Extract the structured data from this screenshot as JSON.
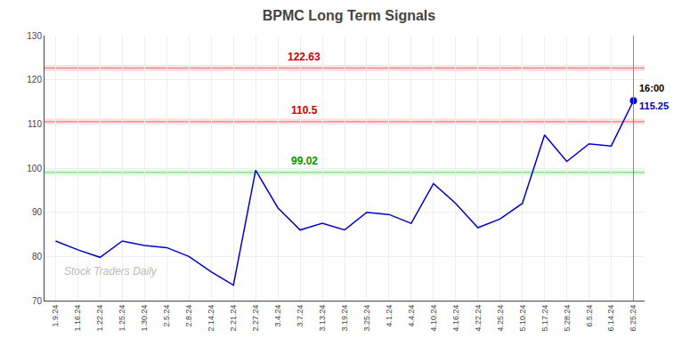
{
  "chart_data": {
    "type": "line",
    "title": "BPMC Long Term Signals",
    "categories": [
      "1.9.24",
      "1.16.24",
      "1.22.24",
      "1.25.24",
      "1.30.24",
      "2.5.24",
      "2.8.24",
      "2.14.24",
      "2.21.24",
      "2.27.24",
      "3.4.24",
      "3.7.24",
      "3.13.24",
      "3.19.24",
      "3.25.24",
      "4.1.24",
      "4.4.24",
      "4.10.24",
      "4.16.24",
      "4.22.24",
      "4.25.24",
      "5.10.24",
      "5.17.24",
      "5.28.24",
      "6.5.24",
      "6.14.24",
      "6.25.24"
    ],
    "values": [
      83.5,
      81.5,
      79.8,
      83.5,
      82.5,
      82.0,
      80.0,
      76.5,
      73.5,
      99.5,
      91.0,
      86.0,
      87.5,
      86.0,
      90.0,
      89.5,
      87.5,
      96.5,
      92.0,
      86.5,
      88.5,
      92.0,
      107.5,
      101.5,
      105.5,
      105.0,
      115.25
    ],
    "color": "#0000cc",
    "hlines": [
      {
        "value": 122.63,
        "color": "#cc0000",
        "band_color": "#ffcccc"
      },
      {
        "value": 110.5,
        "color": "#cc0000",
        "band_color": "#ffcccc"
      },
      {
        "value": 99.02,
        "color": "#009900",
        "band_color": "#ccffcc"
      }
    ],
    "last_point": {
      "value": 115.25,
      "time_label": "16:00",
      "value_label": "115.25"
    },
    "watermark": "Stock Traders Daily",
    "ylim": [
      70,
      130
    ],
    "yticks": [
      70,
      80,
      90,
      100,
      110,
      120,
      130
    ],
    "grid": true
  }
}
